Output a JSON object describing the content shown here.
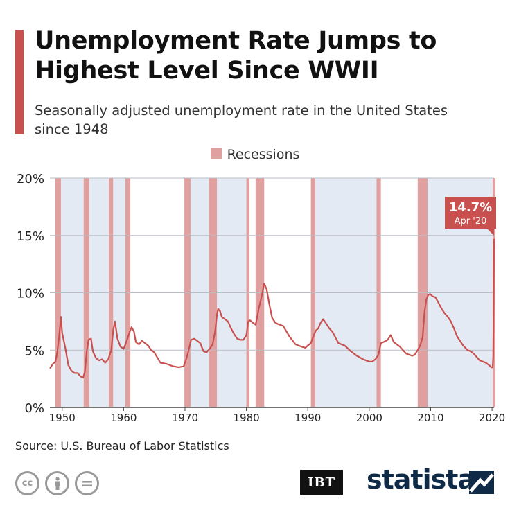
{
  "header": {
    "title": "Unemployment Rate Jumps to Highest Level Since WWII",
    "subtitle": "Seasonally adjusted unemployment rate in the United States since 1948"
  },
  "legend": {
    "label": "Recessions"
  },
  "callout": {
    "value": "14.7%",
    "date": "Apr '20"
  },
  "footer": {
    "source": "Source: U.S. Bureau of Labor Statistics",
    "publisher": "IBT",
    "brand": "statista"
  },
  "colors": {
    "accent": "#c8504f",
    "line": "#c8504f",
    "recession": "#e0a0a0",
    "band": "#e4eaf3",
    "brand": "#0e2a47"
  },
  "chart_data": {
    "type": "line",
    "title": "Unemployment Rate Jumps to Highest Level Since WWII",
    "subtitle": "Seasonally adjusted unemployment rate in the United States since 1948",
    "xlim": [
      1948,
      2020.33
    ],
    "ylim": [
      0,
      20
    ],
    "yticks": [
      0,
      5,
      10,
      15,
      20
    ],
    "ytick_labels": [
      "0%",
      "5%",
      "10%",
      "15%",
      "20%"
    ],
    "xticks": [
      1950,
      1960,
      1970,
      1980,
      1990,
      2000,
      2010,
      2020
    ],
    "xtick_labels": [
      "1950",
      "1960",
      "1970",
      "1980",
      "1990",
      "2000",
      "2010",
      "2020"
    ],
    "grid": true,
    "legend": "top-center",
    "series": [
      {
        "x": [
          1948.0,
          1948.5,
          1948.9,
          1949.2,
          1949.5,
          1949.8,
          1950.0,
          1950.5,
          1951.0,
          1951.5,
          1952.0,
          1952.5,
          1953.0,
          1953.4,
          1953.7,
          1954.0,
          1954.3,
          1954.7,
          1955.0,
          1955.5,
          1956.0,
          1956.5,
          1957.0,
          1957.5,
          1958.0,
          1958.3,
          1958.6,
          1959.0,
          1959.5,
          1960.0,
          1960.3,
          1960.7,
          1961.0,
          1961.3,
          1961.7,
          1962.0,
          1962.5,
          1963.0,
          1963.5,
          1964.0,
          1964.5,
          1965.0,
          1966.0,
          1967.0,
          1968.0,
          1969.0,
          1969.8,
          1970.2,
          1970.6,
          1971.0,
          1971.5,
          1972.0,
          1972.5,
          1973.0,
          1973.5,
          1974.0,
          1974.5,
          1974.9,
          1975.2,
          1975.4,
          1975.7,
          1976.0,
          1976.5,
          1977.0,
          1977.5,
          1978.0,
          1978.5,
          1979.0,
          1979.5,
          1980.0,
          1980.3,
          1980.6,
          1981.0,
          1981.5,
          1981.8,
          1982.0,
          1982.4,
          1982.9,
          1983.3,
          1983.8,
          1984.2,
          1984.7,
          1985.0,
          1986.0,
          1987.0,
          1988.0,
          1989.0,
          1989.6,
          1990.0,
          1990.5,
          1990.9,
          1991.3,
          1991.7,
          1992.1,
          1992.5,
          1993.0,
          1993.5,
          1994.0,
          1994.5,
          1995.0,
          1996.0,
          1997.0,
          1998.0,
          1999.0,
          2000.0,
          2000.5,
          2001.0,
          2001.5,
          2001.9,
          2002.3,
          2002.7,
          2003.0,
          2003.5,
          2004.0,
          2004.5,
          2005.0,
          2006.0,
          2007.0,
          2007.4,
          2007.9,
          2008.3,
          2008.7,
          2009.0,
          2009.3,
          2009.6,
          2009.9,
          2010.3,
          2010.8,
          2011.3,
          2011.8,
          2012.3,
          2012.8,
          2013.3,
          2013.8,
          2014.3,
          2014.8,
          2015.3,
          2016.0,
          2016.5,
          2017.0,
          2017.5,
          2018.0,
          2018.5,
          2019.0,
          2019.5,
          2019.9,
          2020.1,
          2020.2,
          2020.25,
          2020.33
        ],
        "y": [
          3.4,
          3.8,
          4.0,
          4.8,
          6.2,
          7.9,
          6.5,
          5.2,
          3.7,
          3.2,
          3.0,
          3.0,
          2.7,
          2.6,
          3.1,
          4.9,
          5.9,
          6.0,
          4.9,
          4.3,
          4.1,
          4.2,
          3.9,
          4.2,
          5.0,
          6.7,
          7.5,
          6.0,
          5.3,
          5.1,
          5.5,
          6.1,
          6.6,
          7.0,
          6.6,
          5.7,
          5.5,
          5.8,
          5.6,
          5.4,
          5.0,
          4.8,
          3.9,
          3.8,
          3.6,
          3.5,
          3.6,
          4.2,
          5.0,
          5.9,
          6.0,
          5.8,
          5.6,
          4.9,
          4.8,
          5.1,
          5.5,
          6.6,
          8.1,
          8.6,
          8.4,
          7.9,
          7.7,
          7.5,
          6.9,
          6.4,
          6.0,
          5.9,
          5.9,
          6.3,
          7.5,
          7.6,
          7.4,
          7.2,
          8.0,
          8.6,
          9.5,
          10.8,
          10.3,
          8.8,
          7.8,
          7.4,
          7.3,
          7.1,
          6.2,
          5.5,
          5.3,
          5.2,
          5.4,
          5.6,
          6.2,
          6.7,
          6.9,
          7.4,
          7.7,
          7.3,
          6.9,
          6.6,
          6.1,
          5.6,
          5.4,
          4.9,
          4.5,
          4.2,
          4.0,
          4.0,
          4.2,
          4.6,
          5.6,
          5.7,
          5.8,
          5.9,
          6.3,
          5.7,
          5.5,
          5.3,
          4.7,
          4.5,
          4.6,
          5.0,
          5.4,
          6.1,
          8.3,
          9.4,
          9.8,
          9.9,
          9.7,
          9.6,
          9.1,
          8.6,
          8.2,
          7.9,
          7.5,
          6.9,
          6.2,
          5.8,
          5.4,
          5.0,
          4.9,
          4.7,
          4.4,
          4.1,
          4.0,
          3.9,
          3.7,
          3.5,
          3.5,
          4.4,
          8.0,
          14.7
        ]
      }
    ],
    "recessions": [
      [
        1948.9,
        1949.8
      ],
      [
        1953.5,
        1954.4
      ],
      [
        1957.6,
        1958.3
      ],
      [
        1960.3,
        1961.1
      ],
      [
        1969.9,
        1970.9
      ],
      [
        1973.9,
        1975.2
      ],
      [
        1980.0,
        1980.5
      ],
      [
        1981.5,
        1982.9
      ],
      [
        1990.5,
        1991.2
      ],
      [
        2001.2,
        2001.9
      ],
      [
        2007.9,
        2009.5
      ],
      [
        2020.1,
        2020.33
      ]
    ],
    "shaded_bands": [
      [
        1949.8,
        1953.5
      ],
      [
        1954.4,
        1957.6
      ],
      [
        1958.3,
        1960.3
      ],
      [
        1970.9,
        1973.9
      ],
      [
        1975.2,
        1980.0
      ],
      [
        1991.2,
        2001.2
      ],
      [
        2009.5,
        2020.1
      ]
    ]
  }
}
